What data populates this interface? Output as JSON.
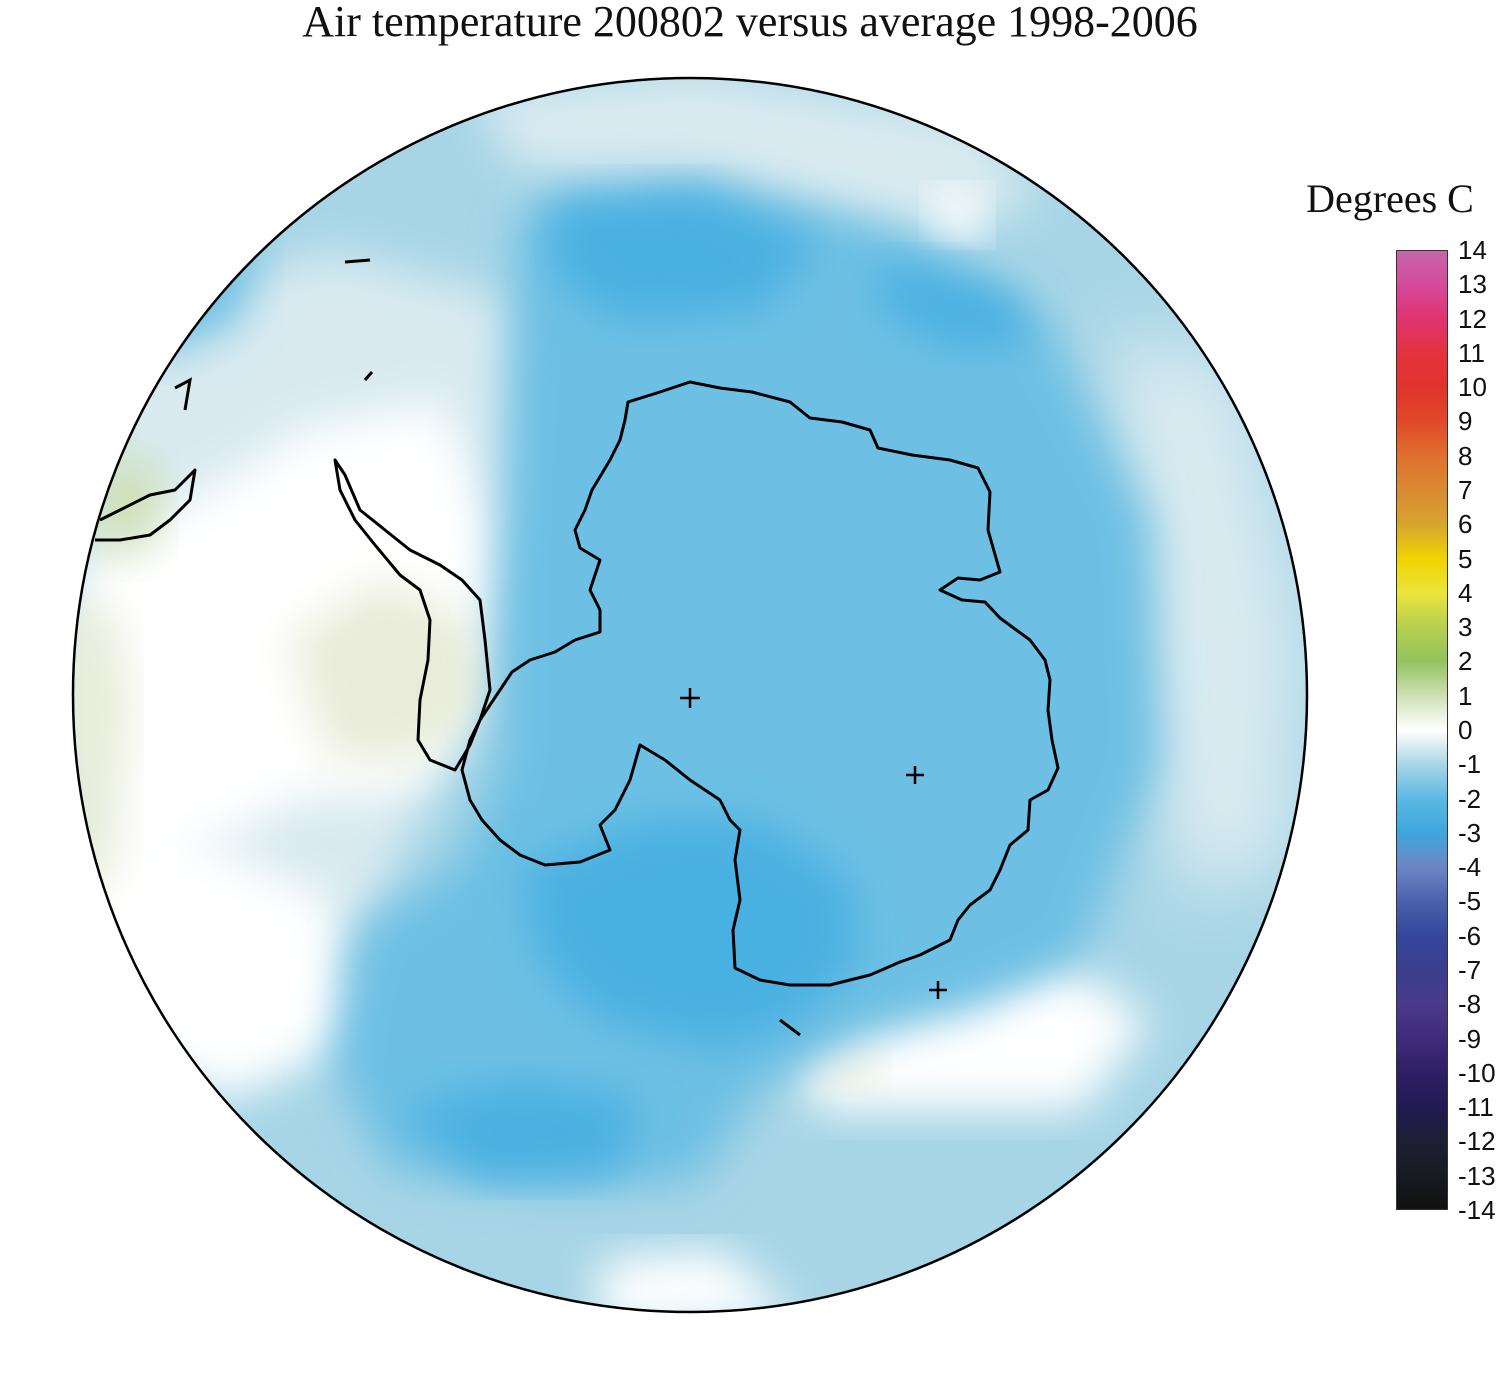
{
  "title": "Air temperature 200802 versus average 1998-2006",
  "colorbar": {
    "title": "Degrees C",
    "ticks": [
      "14",
      "13",
      "12",
      "11",
      "10",
      "9",
      "8",
      "7",
      "6",
      "5",
      "4",
      "3",
      "2",
      "1",
      "0",
      "-1",
      "-2",
      "-3",
      "-4",
      "-5",
      "-6",
      "-7",
      "-8",
      "-9",
      "-10",
      "-11",
      "-12",
      "-13",
      "-14"
    ],
    "gradient": [
      {
        "value": 14,
        "color": "#c466a8"
      },
      {
        "value": 13,
        "color": "#d54a9a"
      },
      {
        "value": 12,
        "color": "#e0336f"
      },
      {
        "value": 11,
        "color": "#e3333d"
      },
      {
        "value": 10,
        "color": "#e0332c"
      },
      {
        "value": 9,
        "color": "#e04a2a"
      },
      {
        "value": 8,
        "color": "#e0702f"
      },
      {
        "value": 7,
        "color": "#d98a33"
      },
      {
        "value": 6,
        "color": "#d6a530"
      },
      {
        "value": 5,
        "color": "#f0d400"
      },
      {
        "value": 4,
        "color": "#ece43a"
      },
      {
        "value": 3,
        "color": "#b6cf4e"
      },
      {
        "value": 2,
        "color": "#93c35d"
      },
      {
        "value": 1,
        "color": "#cfe0b4"
      },
      {
        "value": 0,
        "color": "#ffffff"
      },
      {
        "value": -1,
        "color": "#a9d6e6"
      },
      {
        "value": -2,
        "color": "#5bb9e3"
      },
      {
        "value": -3,
        "color": "#3ea6dc"
      },
      {
        "value": -4,
        "color": "#6d86c4"
      },
      {
        "value": -5,
        "color": "#4a62ad"
      },
      {
        "value": -6,
        "color": "#33479b"
      },
      {
        "value": -7,
        "color": "#3a3e8e"
      },
      {
        "value": -8,
        "color": "#4a3a8a"
      },
      {
        "value": -9,
        "color": "#3f2c7a"
      },
      {
        "value": -10,
        "color": "#2e1f66"
      },
      {
        "value": -11,
        "color": "#221a55"
      },
      {
        "value": -12,
        "color": "#1d1f33"
      },
      {
        "value": -13,
        "color": "#181a22"
      },
      {
        "value": -14,
        "color": "#111111"
      }
    ]
  },
  "map": {
    "projection": "south polar stereographic",
    "region": "Antarctica and Southern Ocean",
    "colors": {
      "cold_deep": "#48b0e2",
      "cold_mid": "#6dc0e4",
      "cold_light": "#a7d5e6",
      "cool_pale": "#d8eaf0",
      "neutral": "#ffffff",
      "warm_pale": "#e8ecd8",
      "warm_light": "#cfe0b4",
      "coastline": "#000000"
    }
  }
}
